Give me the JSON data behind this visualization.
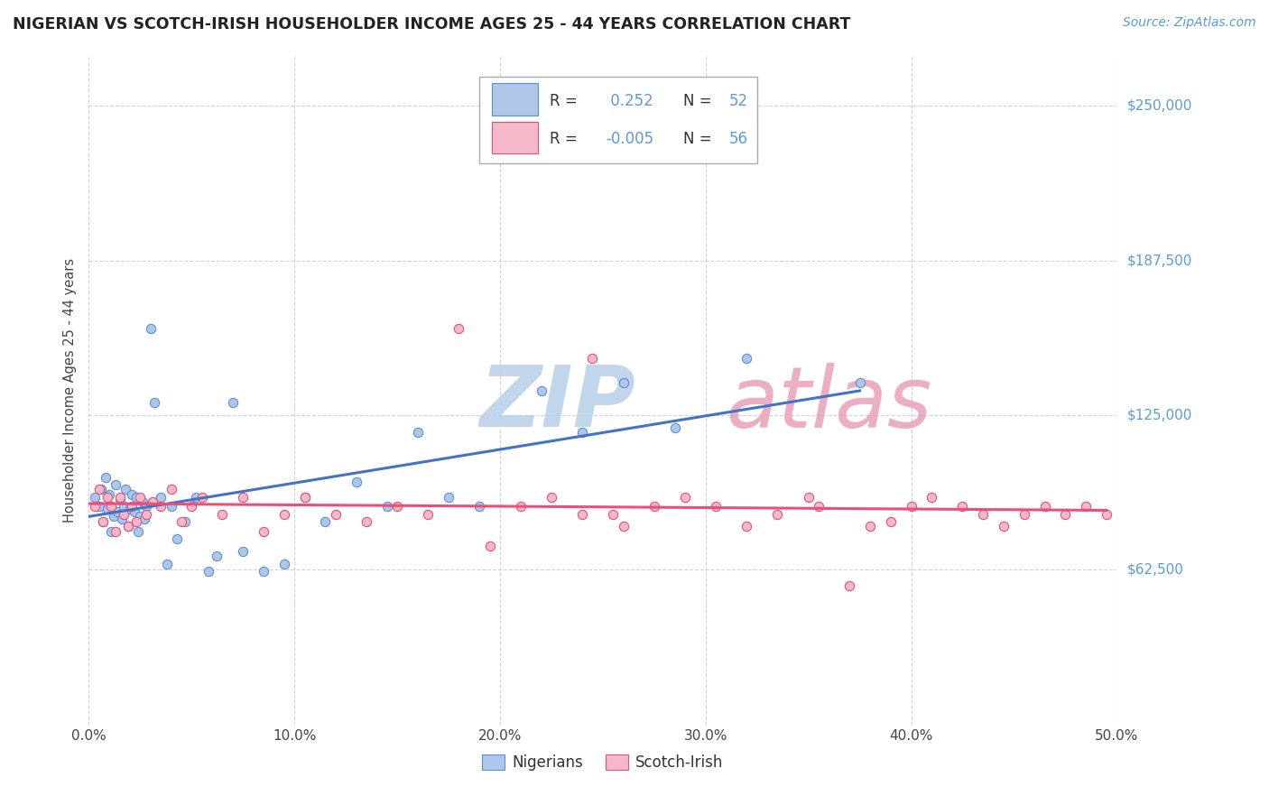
{
  "title": "NIGERIAN VS SCOTCH-IRISH HOUSEHOLDER INCOME AGES 25 - 44 YEARS CORRELATION CHART",
  "source": "Source: ZipAtlas.com",
  "ylabel": "Householder Income Ages 25 - 44 years",
  "xlim": [
    0.0,
    50.0
  ],
  "ylim": [
    0,
    270000
  ],
  "yticks": [
    0,
    62500,
    125000,
    187500,
    250000
  ],
  "ytick_labels": [
    "",
    "$62,500",
    "$125,000",
    "$187,500",
    "$250,000"
  ],
  "xticks": [
    0.0,
    10.0,
    20.0,
    30.0,
    40.0,
    50.0
  ],
  "xtick_labels": [
    "0.0%",
    "10.0%",
    "20.0%",
    "30.0%",
    "40.0%",
    "50.0%"
  ],
  "nigerian_fill": "#aec6e8",
  "nigerian_edge": "#5b8fd4",
  "scotch_fill": "#f4b8c8",
  "scotch_edge": "#e05080",
  "nigerian_line_color": "#4472c4",
  "scotch_line_color": "#e8507a",
  "watermark": "ZIPAtlas",
  "watermark_color_zip": "#b8cfe8",
  "watermark_color_atlas": "#e8a0b8",
  "r_nigerian": 0.252,
  "n_nigerian": 52,
  "r_scotch": -0.005,
  "n_scotch": 56,
  "nigerian_x": [
    0.3,
    0.5,
    0.6,
    0.7,
    0.8,
    0.9,
    1.0,
    1.1,
    1.2,
    1.3,
    1.4,
    1.5,
    1.6,
    1.7,
    1.8,
    1.9,
    2.0,
    2.1,
    2.2,
    2.3,
    2.4,
    2.5,
    2.6,
    2.7,
    2.8,
    3.0,
    3.2,
    3.5,
    3.8,
    4.0,
    4.3,
    4.7,
    5.2,
    5.8,
    6.2,
    7.0,
    7.5,
    8.5,
    9.5,
    10.5,
    11.5,
    13.0,
    14.5,
    16.0,
    17.5,
    19.0,
    22.0,
    24.0,
    26.0,
    28.5,
    32.0,
    37.5
  ],
  "nigerian_y": [
    92000,
    88000,
    95000,
    82000,
    100000,
    87000,
    93000,
    78000,
    84000,
    97000,
    86000,
    91000,
    83000,
    88000,
    95000,
    80000,
    87000,
    93000,
    86000,
    92000,
    78000,
    84000,
    90000,
    83000,
    88000,
    160000,
    130000,
    92000,
    65000,
    88000,
    75000,
    82000,
    92000,
    62000,
    68000,
    130000,
    70000,
    62000,
    65000,
    92000,
    82000,
    98000,
    88000,
    118000,
    92000,
    88000,
    135000,
    118000,
    138000,
    120000,
    148000,
    138000
  ],
  "scotch_x": [
    0.3,
    0.5,
    0.7,
    0.9,
    1.1,
    1.3,
    1.5,
    1.7,
    1.9,
    2.1,
    2.3,
    2.5,
    2.8,
    3.1,
    3.5,
    4.0,
    4.5,
    5.0,
    5.5,
    6.5,
    7.5,
    8.5,
    9.5,
    10.5,
    12.0,
    13.5,
    15.0,
    16.5,
    18.0,
    19.5,
    21.0,
    22.5,
    24.0,
    24.5,
    25.5,
    26.0,
    27.5,
    29.0,
    30.5,
    32.0,
    33.5,
    35.0,
    35.5,
    37.0,
    38.0,
    39.0,
    40.0,
    41.0,
    42.5,
    43.5,
    44.5,
    45.5,
    46.5,
    47.5,
    48.5,
    49.5
  ],
  "scotch_y": [
    88000,
    95000,
    82000,
    92000,
    88000,
    78000,
    92000,
    85000,
    80000,
    88000,
    82000,
    92000,
    85000,
    90000,
    88000,
    95000,
    82000,
    88000,
    92000,
    85000,
    92000,
    78000,
    85000,
    92000,
    85000,
    82000,
    88000,
    85000,
    160000,
    72000,
    88000,
    92000,
    85000,
    148000,
    85000,
    80000,
    88000,
    92000,
    88000,
    80000,
    85000,
    92000,
    88000,
    56000,
    80000,
    82000,
    88000,
    92000,
    88000,
    85000,
    80000,
    85000,
    88000,
    85000,
    88000,
    85000
  ]
}
